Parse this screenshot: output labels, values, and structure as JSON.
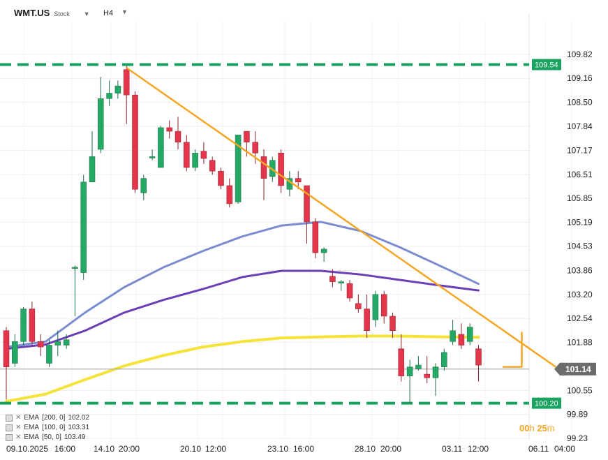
{
  "header": {
    "symbol": "WMT.US",
    "asset_type": "Stock",
    "timeframe": "H4"
  },
  "chart_data": {
    "type": "candlestick",
    "y_ticks": [
      "109.82",
      "109.16",
      "108.50",
      "107.84",
      "107.17",
      "106.51",
      "105.85",
      "105.19",
      "104.53",
      "103.86",
      "103.20",
      "102.54",
      "101.88",
      "100.55",
      "99.89",
      "99.23"
    ],
    "x_ticks": [
      "09.10.2025",
      "16:00",
      "14.10",
      "20:00",
      "20.10",
      "12:00",
      "23.10",
      "16:00",
      "28.10",
      "20:00",
      "03.11",
      "12:00",
      "06.11",
      "04:00"
    ],
    "ylim": [
      99.23,
      110.3
    ],
    "current_price": "101.14",
    "levels": [
      {
        "label": "109.54",
        "value": 109.54,
        "color": "#1aa260"
      },
      {
        "label": "100.20",
        "value": 100.2,
        "color": "#1aa260"
      }
    ],
    "candles": [
      [
        102.2,
        101.2,
        102.3,
        100.3
      ],
      [
        101.3,
        101.9,
        102.1,
        101.2
      ],
      [
        101.9,
        102.8,
        102.85,
        101.8
      ],
      [
        102.8,
        101.9,
        103.0,
        101.8
      ],
      [
        101.9,
        101.75,
        102.1,
        101.5
      ],
      [
        101.3,
        101.8,
        101.95,
        101.2
      ],
      [
        101.8,
        101.9,
        102.2,
        101.5
      ],
      [
        101.8,
        101.95,
        102.1,
        101.7
      ],
      [
        103.95,
        103.95,
        104.0,
        102.6
      ],
      [
        103.8,
        106.3,
        106.5,
        103.6
      ],
      [
        106.3,
        107.0,
        107.7,
        106.3
      ],
      [
        107.2,
        108.6,
        109.2,
        107.1
      ],
      [
        108.6,
        108.75,
        109.1,
        108.4
      ],
      [
        108.75,
        108.95,
        109.1,
        108.6
      ],
      [
        109.4,
        108.7,
        109.5,
        107.9
      ],
      [
        108.7,
        106.1,
        108.8,
        106.0
      ],
      [
        106.0,
        106.4,
        106.5,
        105.8
      ],
      [
        107.0,
        107.0,
        107.2,
        106.9
      ],
      [
        106.7,
        107.8,
        107.85,
        106.7
      ],
      [
        107.8,
        107.7,
        108.0,
        107.5
      ],
      [
        107.7,
        107.4,
        108.1,
        107.2
      ],
      [
        107.4,
        106.7,
        107.6,
        106.6
      ],
      [
        106.7,
        107.1,
        107.2,
        106.6
      ],
      [
        107.15,
        106.95,
        107.4,
        106.8
      ],
      [
        106.9,
        106.6,
        107.0,
        106.5
      ],
      [
        106.6,
        106.2,
        106.7,
        106.1
      ],
      [
        106.2,
        105.7,
        106.4,
        105.6
      ],
      [
        105.75,
        107.6,
        107.6,
        105.7
      ],
      [
        107.7,
        107.4,
        107.7,
        107.0
      ],
      [
        107.4,
        107.1,
        107.7,
        106.8
      ],
      [
        107.0,
        106.4,
        107.2,
        105.8
      ],
      [
        106.45,
        106.9,
        107.0,
        106.3
      ],
      [
        107.1,
        106.2,
        107.2,
        106.0
      ],
      [
        106.1,
        106.4,
        106.6,
        105.9
      ],
      [
        106.4,
        106.3,
        106.6,
        106.1
      ],
      [
        106.2,
        105.2,
        106.2,
        104.6
      ],
      [
        105.2,
        104.35,
        105.3,
        104.2
      ],
      [
        104.35,
        104.45,
        104.5,
        104.1
      ],
      [
        103.7,
        103.55,
        103.9,
        103.4
      ],
      [
        103.55,
        103.55,
        103.6,
        103.3
      ],
      [
        103.5,
        103.1,
        103.6,
        103.0
      ],
      [
        102.95,
        102.8,
        103.2,
        102.7
      ],
      [
        102.8,
        102.2,
        103.2,
        102.0
      ],
      [
        102.5,
        103.2,
        103.3,
        102.3
      ],
      [
        103.2,
        102.6,
        103.3,
        102.4
      ],
      [
        102.6,
        102.2,
        102.7,
        102.0
      ],
      [
        101.7,
        100.95,
        102.1,
        100.8
      ],
      [
        100.95,
        101.2,
        101.4,
        100.2
      ],
      [
        101.15,
        101.25,
        101.5,
        101.1
      ],
      [
        101.0,
        100.9,
        101.5,
        100.75
      ],
      [
        100.9,
        101.2,
        101.3,
        100.4
      ],
      [
        101.2,
        101.6,
        101.7,
        101.1
      ],
      [
        101.9,
        102.2,
        102.5,
        101.8
      ],
      [
        102.1,
        101.8,
        102.4,
        101.7
      ],
      [
        101.9,
        102.3,
        102.4,
        101.8
      ],
      [
        101.7,
        101.25,
        101.8,
        100.8
      ]
    ],
    "trend_line": {
      "from": [
        14,
        109.45
      ],
      "to": [
        64,
        101.2
      ]
    },
    "arrow": {
      "tip_value": 101.2
    },
    "indicators": [
      {
        "name": "EMA",
        "params": "[200, 0]",
        "value": "102.02",
        "color": "#f5e33a"
      },
      {
        "name": "EMA",
        "params": "[100, 0]",
        "value": "103.31",
        "color": "#6a3fb5"
      },
      {
        "name": "EMA",
        "params": "[50, 0]",
        "value": "103.49",
        "color": "#7a8ccf"
      }
    ],
    "ema_series": [
      {
        "label": "EMA [200, 0]",
        "color": "#f5e33a",
        "values": [
          100.25,
          100.45,
          100.85,
          101.23,
          101.52,
          101.75,
          101.9,
          102.0,
          102.03,
          102.05,
          102.05,
          102.03,
          102.02
        ]
      },
      {
        "label": "EMA [100, 0]",
        "color": "#6a3fb5",
        "values": [
          101.7,
          101.82,
          102.2,
          102.7,
          103.05,
          103.35,
          103.68,
          103.85,
          103.85,
          103.75,
          103.6,
          103.45,
          103.31
        ]
      },
      {
        "label": "EMA [50, 0]",
        "color": "#7a8ccf",
        "values": [
          101.75,
          101.9,
          102.7,
          103.4,
          103.95,
          104.4,
          104.8,
          105.1,
          105.2,
          104.95,
          104.5,
          104.0,
          103.49
        ]
      }
    ],
    "countdown": {
      "hours": "00",
      "h": "h",
      "minutes": "25",
      "m": "m"
    },
    "colors": {
      "up": "#24a865",
      "down": "#e4364a",
      "trend": "#f5a623"
    }
  }
}
